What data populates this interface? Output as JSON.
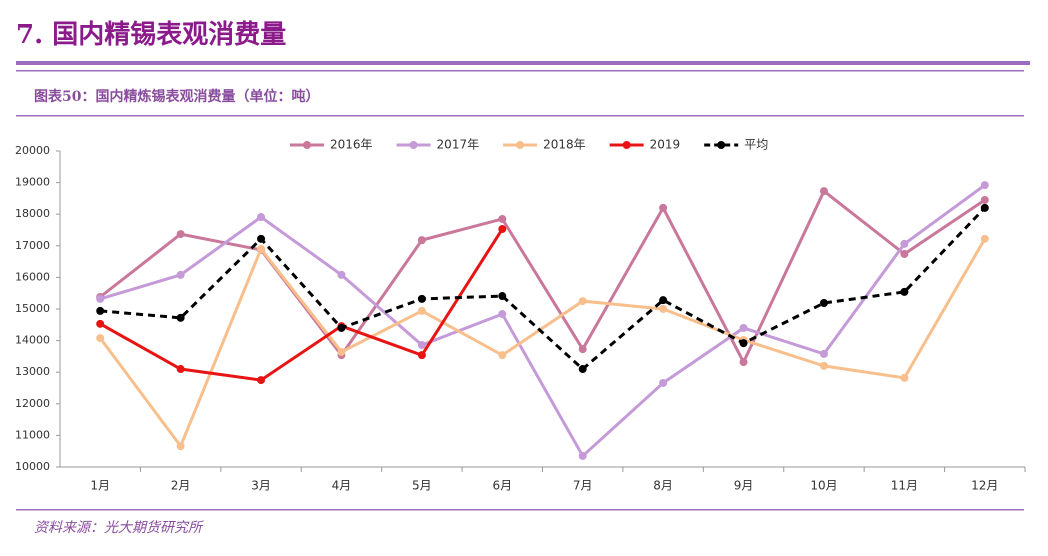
{
  "section_title": "7. 国内精锡表观消费量",
  "source": "资料来源：光大期货研究所",
  "chart_data": {
    "type": "line",
    "title": "图表50：国内精炼锡表观消费量（单位：吨）",
    "categories": [
      "1月",
      "2月",
      "3月",
      "4月",
      "5月",
      "6月",
      "7月",
      "8月",
      "9月",
      "10月",
      "11月",
      "12月"
    ],
    "series": [
      {
        "name": "2016年",
        "color": "#c9779a",
        "values": [
          15380,
          17370,
          16870,
          13540,
          17180,
          17850,
          13730,
          18200,
          13320,
          18730,
          16740,
          18450
        ]
      },
      {
        "name": "2017年",
        "color": "#c49ad8",
        "values": [
          15320,
          16080,
          17910,
          16080,
          13860,
          14840,
          10350,
          12660,
          14400,
          13580,
          17060,
          18920
        ]
      },
      {
        "name": "2018年",
        "color": "#f8bf8c",
        "values": [
          14080,
          10660,
          16900,
          13640,
          14940,
          13540,
          15250,
          15000,
          14020,
          13200,
          12820,
          17220
        ]
      },
      {
        "name": "2019",
        "color": "#e81414",
        "values": [
          14530,
          13100,
          12750,
          14460,
          13540,
          17530,
          null,
          null,
          null,
          null,
          null,
          null
        ]
      },
      {
        "name": "平均",
        "color": "#000000",
        "dash": true,
        "values": [
          14940,
          14720,
          17220,
          14400,
          15320,
          15410,
          13100,
          15280,
          13920,
          15190,
          15540,
          18200
        ]
      }
    ],
    "ylim": [
      10000,
      20000
    ],
    "yticks": [
      10000,
      11000,
      12000,
      13000,
      14000,
      15000,
      16000,
      17000,
      18000,
      19000,
      20000
    ],
    "legend": "top"
  }
}
